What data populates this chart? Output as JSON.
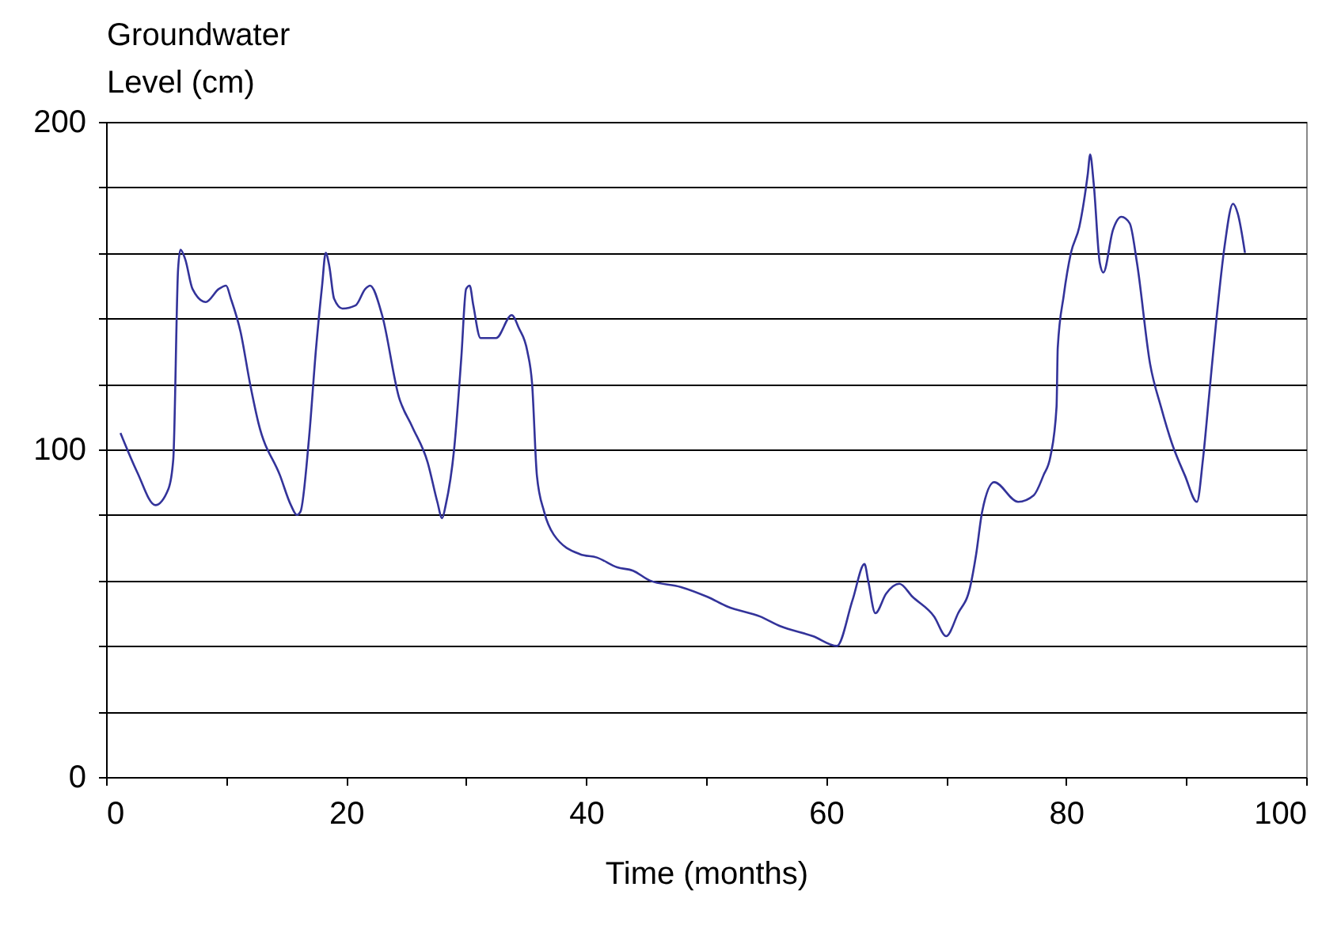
{
  "chart_data": {
    "type": "line",
    "xlabel": "Time (months)",
    "ylabel": "Groundwater Level (cm)",
    "xlim": [
      0,
      100
    ],
    "ylim": [
      0,
      200
    ],
    "xticks": [
      0,
      {
        "value": 10,
        "label": null
      },
      20,
      {
        "value": 30,
        "label": null
      },
      40,
      {
        "value": 50,
        "label": null
      },
      60,
      {
        "value": 70,
        "label": null
      },
      80,
      {
        "value": 90,
        "label": null
      },
      100
    ],
    "yticks": [
      0,
      {
        "value": 20,
        "label": null
      },
      {
        "value": 40,
        "label": null
      },
      {
        "value": 60,
        "label": null
      },
      {
        "value": 80,
        "label": null
      },
      100,
      {
        "value": 120,
        "label": null
      },
      {
        "value": 140,
        "label": null
      },
      {
        "value": 160,
        "label": null
      },
      {
        "value": 180,
        "label": null
      },
      200
    ],
    "grid": "y",
    "series": [
      {
        "color": "#33339a",
        "x": [
          1.2,
          2.6,
          4.1,
          5.2,
          5.6,
          6.0,
          6.2,
          6.6,
          7.2,
          8.3,
          9.4,
          10.0,
          10.4,
          11.2,
          12.0,
          12.7,
          14.5,
          15.4,
          15.9,
          16.2,
          16.9,
          17.5,
          18.0,
          18.3,
          18.6,
          19.0,
          19.7,
          20.8,
          21.6,
          22.0,
          23.0,
          24.4,
          25.5,
          26.8,
          27.6,
          28.0,
          28.3,
          29.0,
          29.6,
          30.0,
          30.3,
          30.6,
          31.2,
          32.5,
          33.8,
          34.4,
          35.1,
          35.5,
          35.9,
          36.5,
          37.3,
          39.5,
          40.9,
          42.6,
          43.9,
          45.3,
          47.9,
          50.1,
          51.8,
          54.5,
          56.2,
          58.9,
          60.9,
          62.2,
          63.2,
          63.5,
          64.1,
          65.0,
          66.1,
          67.2,
          69.0,
          70.0,
          71.0,
          72.0,
          72.5,
          73.0,
          74.0,
          76.0,
          77.3,
          78.1,
          78.7,
          79.2,
          79.3,
          79.8,
          80.4,
          81.1,
          81.8,
          82.0,
          82.3,
          82.8,
          83.1,
          83.9,
          84.6,
          85.3,
          85.9,
          87.0,
          87.9,
          88.8,
          89.9,
          90.9,
          91.4,
          91.9,
          92.5,
          93.2,
          93.9,
          94.3,
          94.9
        ],
        "values": [
          105,
          93,
          83,
          88,
          97,
          155,
          161,
          158,
          149,
          145,
          149,
          150,
          146,
          136,
          120,
          108,
          92,
          83,
          80,
          81,
          103,
          131,
          150,
          160,
          156,
          146,
          143,
          144,
          149,
          150,
          141,
          116,
          107,
          96,
          84,
          79,
          83,
          100,
          128,
          149,
          150,
          144,
          134,
          134,
          141,
          137,
          130,
          120,
          92,
          81,
          74,
          68,
          67,
          64,
          63,
          60,
          58,
          55,
          52,
          49,
          46,
          43,
          40,
          54,
          65,
          60,
          50,
          56,
          59,
          55,
          49,
          43,
          50,
          58,
          68,
          81,
          90,
          84,
          86,
          92,
          98,
          113,
          131,
          147,
          160,
          168,
          184,
          190,
          181,
          157,
          154,
          167,
          171,
          169,
          157,
          126,
          113,
          102,
          92,
          84,
          97,
          116,
          139,
          162,
          175,
          172,
          160
        ]
      }
    ]
  }
}
